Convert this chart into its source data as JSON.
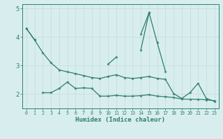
{
  "x": [
    0,
    1,
    2,
    3,
    4,
    5,
    6,
    7,
    8,
    9,
    10,
    11,
    12,
    13,
    14,
    15,
    16,
    17,
    18,
    19,
    20,
    21,
    22,
    23
  ],
  "series1": [
    4.3,
    3.9,
    null,
    null,
    null,
    null,
    null,
    null,
    null,
    null,
    null,
    null,
    null,
    null,
    4.1,
    4.85,
    3.8,
    2.8,
    null,
    null,
    null,
    null,
    null,
    null
  ],
  "series2": [
    null,
    null,
    null,
    null,
    null,
    null,
    null,
    null,
    null,
    null,
    3.05,
    3.3,
    null,
    null,
    3.55,
    4.85,
    null,
    null,
    null,
    null,
    null,
    null,
    null,
    null
  ],
  "series3": [
    4.3,
    3.9,
    3.45,
    3.1,
    2.85,
    2.78,
    2.72,
    2.65,
    2.58,
    2.55,
    2.62,
    2.68,
    2.58,
    2.55,
    2.58,
    2.62,
    2.55,
    2.52,
    2.02,
    1.85,
    2.05,
    2.38,
    1.85,
    1.75
  ],
  "series4": [
    null,
    null,
    2.05,
    2.05,
    2.2,
    2.42,
    2.2,
    2.22,
    2.2,
    1.93,
    1.93,
    1.96,
    1.93,
    1.93,
    1.95,
    1.98,
    1.93,
    1.91,
    1.88,
    1.83,
    1.82,
    1.82,
    1.8,
    1.77
  ],
  "color": "#2e7d6e",
  "bg_color": "#d8eeee",
  "grid_color": "#c8dede",
  "xlabel": "Humidex (Indice chaleur)",
  "ylim": [
    1.5,
    5.15
  ],
  "xlim": [
    -0.5,
    23.5
  ],
  "yticks": [
    2,
    3,
    4,
    5
  ],
  "xticks": [
    0,
    1,
    2,
    3,
    4,
    5,
    6,
    7,
    8,
    9,
    10,
    11,
    12,
    13,
    14,
    15,
    16,
    17,
    18,
    19,
    20,
    21,
    22,
    23
  ]
}
